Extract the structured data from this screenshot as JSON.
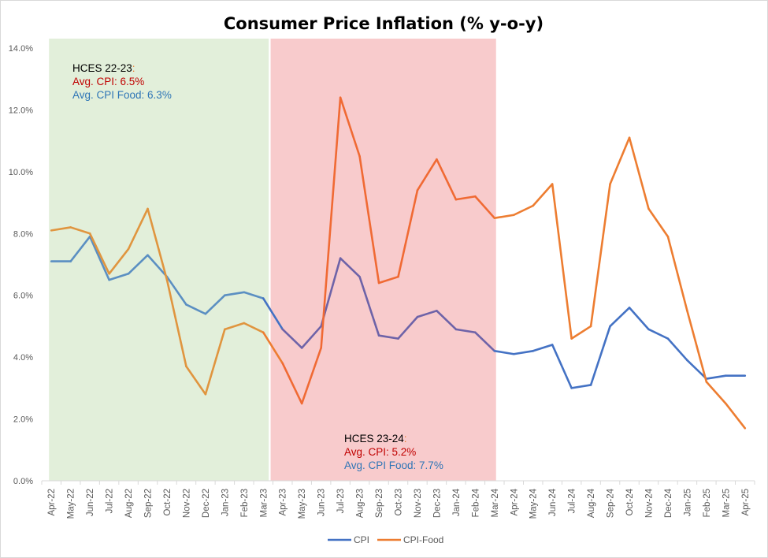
{
  "chart_data": {
    "type": "line",
    "title": "Consumer Price Inflation (% y-o-y)",
    "xlabel": "",
    "ylabel": "",
    "ylim": [
      0,
      14
    ],
    "yticks": [
      "0.0%",
      "2.0%",
      "4.0%",
      "6.0%",
      "8.0%",
      "10.0%",
      "12.0%",
      "14.0%"
    ],
    "ytick_values": [
      0,
      2,
      4,
      6,
      8,
      10,
      12,
      14
    ],
    "grid": false,
    "legend_position": "bottom",
    "categories": [
      "Apr-22",
      "May-22",
      "Jun-22",
      "Jul-22",
      "Aug-22",
      "Sep-22",
      "Oct-22",
      "Nov-22",
      "Dec-22",
      "Jan-23",
      "Feb-23",
      "Mar-23",
      "Apr-23",
      "May-23",
      "Jun-23",
      "Jul-23",
      "Aug-23",
      "Sep-23",
      "Oct-23",
      "Nov-23",
      "Dec-23",
      "Jan-24",
      "Feb-24",
      "Mar-24",
      "Apr-24",
      "May-24",
      "Jun-24",
      "Jul-24",
      "Aug-24",
      "Sep-24",
      "Oct-24",
      "Nov-24",
      "Dec-24",
      "Jan-25",
      "Feb-25",
      "Mar-25",
      "Apr-25"
    ],
    "series": [
      {
        "name": "CPI",
        "color": "#4472c4",
        "values": [
          7.1,
          7.1,
          7.9,
          6.5,
          6.7,
          7.3,
          6.6,
          5.7,
          5.4,
          6.0,
          6.1,
          5.9,
          4.9,
          4.3,
          5.0,
          7.2,
          6.6,
          4.7,
          4.6,
          5.3,
          5.5,
          4.9,
          4.8,
          4.2,
          4.1,
          4.2,
          4.4,
          3.0,
          3.1,
          5.0,
          5.6,
          4.9,
          4.6,
          3.9,
          3.3,
          3.4,
          3.4
        ]
      },
      {
        "name": "CPI-Food",
        "color": "#ed7d31",
        "values": [
          8.1,
          8.2,
          8.0,
          6.7,
          7.5,
          8.8,
          6.5,
          3.7,
          2.8,
          4.9,
          5.1,
          4.8,
          3.8,
          2.5,
          4.3,
          12.4,
          10.5,
          6.4,
          6.6,
          9.4,
          10.4,
          9.1,
          9.2,
          8.5,
          8.6,
          8.9,
          9.6,
          4.6,
          5.0,
          9.6,
          11.1,
          8.8,
          7.9,
          5.5,
          3.2,
          2.5,
          1.7
        ]
      }
    ],
    "shaded_regions": [
      {
        "name": "HCES 22-23",
        "from": "Apr-22",
        "to": "Mar-23",
        "color": "#e2efda",
        "label_head": "HCES 22-23",
        "label_colon": ":",
        "label_cpi": "Avg. CPI: 6.5%",
        "label_food": "Avg. CPI Food: 6.3%",
        "line_tint_cpi": "#5b8fc2",
        "line_tint_food": "#e0953f"
      },
      {
        "name": "HCES 23-24",
        "from": "Apr-23",
        "to": "Mar-24",
        "color": "#f8cbcc",
        "label_head": "HCES 23-24",
        "label_colon": ":",
        "label_cpi": "Avg. CPI: 5.2%",
        "label_food": "Avg. CPI Food: 7.7%",
        "line_tint_cpi": "#6e63a8",
        "line_tint_food": "#f06a34"
      }
    ],
    "legend": [
      "CPI",
      "CPI-Food"
    ]
  }
}
